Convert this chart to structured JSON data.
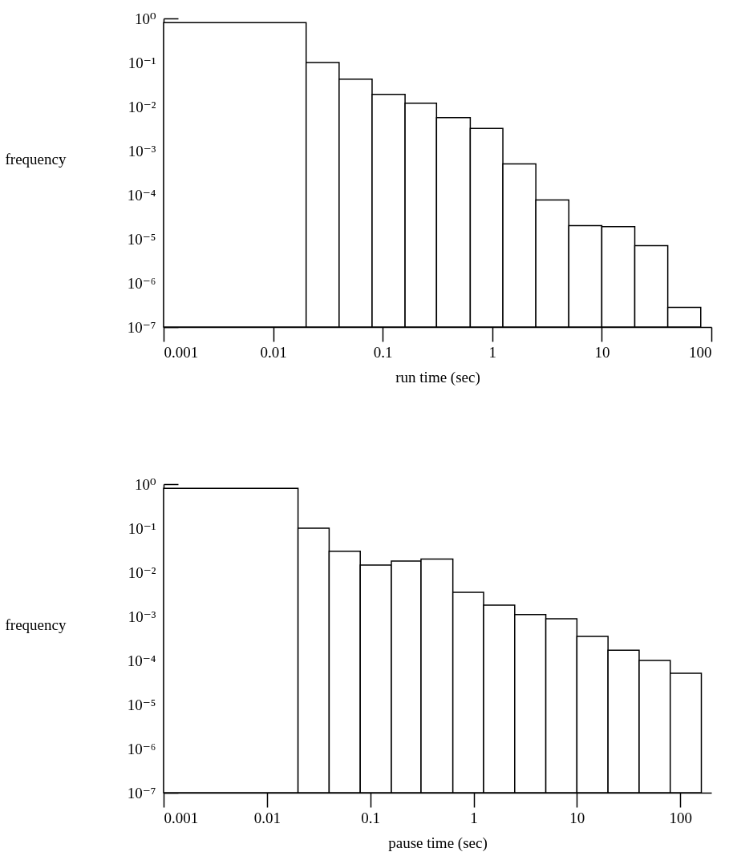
{
  "chart_data": [
    {
      "type": "histogram",
      "xlabel": "run time (sec)",
      "ylabel": "frequency",
      "log": "xy",
      "grid": false,
      "bins": [
        0.001,
        0.02,
        0.04,
        0.08,
        0.16,
        0.31,
        0.63,
        1.25,
        2.5,
        5,
        10,
        20,
        40,
        80
      ],
      "values": [
        0.8,
        0.1,
        0.042,
        0.019,
        0.012,
        0.0056,
        0.0032,
        0.0005,
        7.6e-05,
        2e-05,
        1.9e-05,
        7e-06,
        2.8e-07
      ],
      "xlim": [
        0.001,
        100
      ],
      "xticks": [
        0.001,
        0.01,
        0.1,
        1,
        10,
        100
      ],
      "ylim": [
        1e-07,
        1
      ],
      "yticks": [
        {
          "value": 1,
          "label": "10⁰"
        },
        {
          "value": 0.1,
          "label": "10⁻¹"
        },
        {
          "value": 0.01,
          "label": "10⁻²"
        },
        {
          "value": 0.001,
          "label": "10⁻³"
        },
        {
          "value": 0.0001,
          "label": "10⁻⁴"
        },
        {
          "value": 1e-05,
          "label": "10⁻⁵"
        },
        {
          "value": 1e-06,
          "label": "10⁻⁶"
        },
        {
          "value": 1e-07,
          "label": "10⁻⁷"
        }
      ]
    },
    {
      "type": "histogram",
      "xlabel": "pause time (sec)",
      "ylabel": "frequency",
      "log": "xy",
      "grid": false,
      "bins": [
        0.001,
        0.02,
        0.04,
        0.08,
        0.16,
        0.31,
        0.63,
        1.25,
        2.5,
        5,
        10,
        20,
        40,
        80,
        160
      ],
      "values": [
        0.8,
        0.1,
        0.03,
        0.0145,
        0.018,
        0.02,
        0.0035,
        0.0018,
        0.0011,
        0.00088,
        0.00035,
        0.00017,
        0.0001,
        5.1e-05
      ],
      "xlim": [
        0.001,
        200
      ],
      "xticks": [
        0.001,
        0.01,
        0.1,
        1,
        10,
        100
      ],
      "ylim": [
        1e-07,
        1
      ],
      "yticks": [
        {
          "value": 1,
          "label": "10⁰"
        },
        {
          "value": 0.1,
          "label": "10⁻¹"
        },
        {
          "value": 0.01,
          "label": "10⁻²"
        },
        {
          "value": 0.001,
          "label": "10⁻³"
        },
        {
          "value": 0.0001,
          "label": "10⁻⁴"
        },
        {
          "value": 1e-05,
          "label": "10⁻⁵"
        },
        {
          "value": 1e-06,
          "label": "10⁻⁶"
        },
        {
          "value": 1e-07,
          "label": "10⁻⁷"
        }
      ]
    }
  ]
}
